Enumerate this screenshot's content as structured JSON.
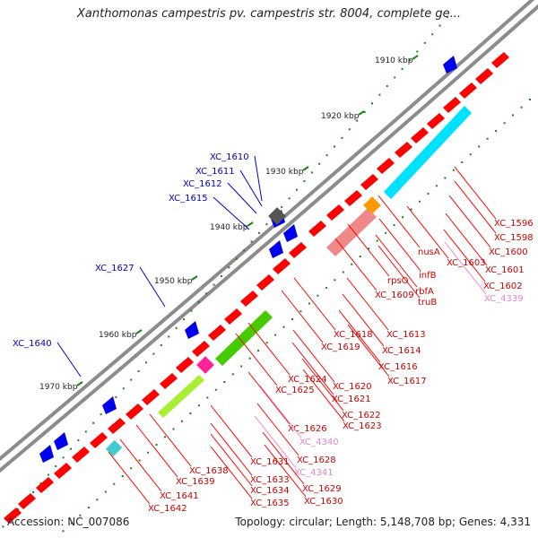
{
  "title": "Xanthomonas campestris pv. campestris str. 8004, complete ge...",
  "footer": {
    "accession": "Accession: NC_007086",
    "summary": "Topology: circular; Length: 5,148,708 bp; Genes: 4,331"
  },
  "colors": {
    "backbone": "#8c8c8c",
    "forward_gene": "#ff0000",
    "reverse_gene_label": "#0000cc",
    "rna_label": "#ee88cc",
    "tick": "#118811",
    "cyan_band": "#00e0ff",
    "green_band": "#44cc00"
  },
  "ruler": [
    "1910 kbp",
    "1920 kbp",
    "1930 kbp",
    "1940 kbp",
    "1950 kbp",
    "1960 kbp",
    "1970 kbp"
  ],
  "left_labels": [
    "XC_1610",
    "XC_1611",
    "XC_1612",
    "XC_1615",
    "XC_1627",
    "XC_1640"
  ],
  "right_labels": [
    "XC_1596",
    "XC_1598",
    "XC_1600",
    "XC_1601",
    "XC_1602",
    "XC_4339",
    "XC_1603",
    "nusA",
    "infB",
    "rbfA",
    "truB",
    "rpsO",
    "XC_1609",
    "XC_1613",
    "XC_1614",
    "XC_1616",
    "XC_1617",
    "XC_1618",
    "XC_1619",
    "XC_1620",
    "XC_1621",
    "XC_1622",
    "XC_1623",
    "XC_1624",
    "XC_1625",
    "XC_1626",
    "XC_4340",
    "XC_1628",
    "XC_4341",
    "XC_1629",
    "XC_1630",
    "XC_1631",
    "XC_1633",
    "XC_1634",
    "XC_1635",
    "XC_1638",
    "XC_1639",
    "XC_1641",
    "XC_1642"
  ]
}
